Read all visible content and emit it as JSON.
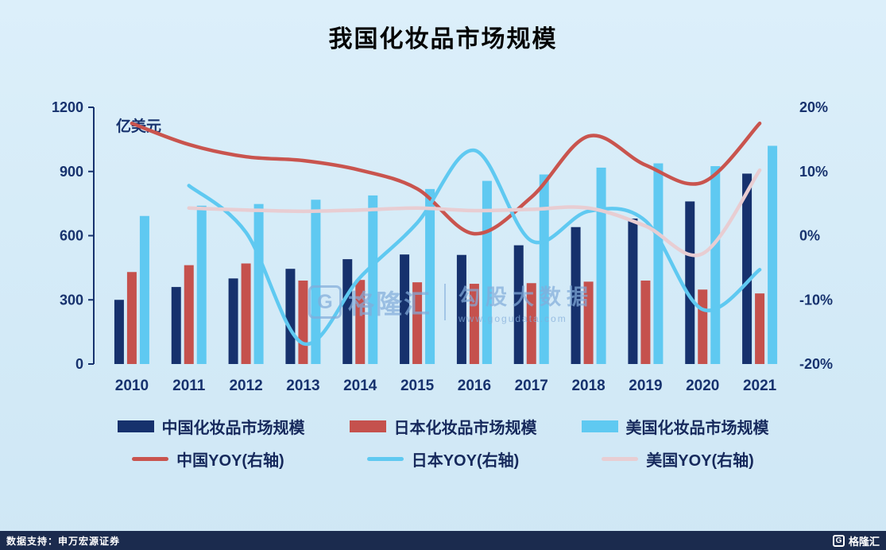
{
  "chart_data": {
    "type": "bar+line",
    "title": "我国化妆品市场规模",
    "grid": false,
    "legend_position": "bottom",
    "categories": [
      "2010",
      "2011",
      "2012",
      "2013",
      "2014",
      "2015",
      "2016",
      "2017",
      "2018",
      "2019",
      "2020",
      "2021"
    ],
    "left_axis": {
      "unit": "亿美元",
      "min": 0,
      "max": 1200,
      "ticks": [
        0,
        300,
        600,
        900,
        1200
      ]
    },
    "right_axis": {
      "min": -20,
      "max": 20,
      "ticks": [
        20,
        10,
        0,
        -10,
        -20
      ],
      "suffix": "%"
    },
    "axis_color": "#17326e",
    "bar_series": [
      {
        "name": "中国化妆品市场规模",
        "color": "#16316d",
        "values": [
          300,
          360,
          400,
          445,
          490,
          512,
          510,
          555,
          640,
          680,
          760,
          890
        ]
      },
      {
        "name": "日本化妆品市场规模",
        "color": "#c5514d",
        "values": [
          430,
          462,
          470,
          390,
          393,
          382,
          375,
          378,
          385,
          390,
          348,
          330
        ]
      },
      {
        "name": "美国化妆品市场规模",
        "color": "#5fc9f1",
        "values": [
          692,
          740,
          748,
          768,
          788,
          818,
          856,
          886,
          918,
          938,
          925,
          1020
        ]
      }
    ],
    "line_series": [
      {
        "name": "中国YOY(右轴)",
        "color": "#c9544e",
        "axis": "right",
        "values": [
          17.5,
          14.2,
          12.3,
          11.7,
          10.2,
          7.3,
          0.3,
          6.0,
          15.5,
          11.0,
          8.3,
          17.5
        ]
      },
      {
        "name": "日本YOY(右轴)",
        "color": "#5fc9f1",
        "axis": "right",
        "values": [
          null,
          7.8,
          0.5,
          -16.8,
          -6.5,
          2.0,
          13.3,
          -0.8,
          3.8,
          2.3,
          -11.5,
          -5.3
        ]
      },
      {
        "name": "美国YOY(右轴)",
        "color": "#e8cdd2",
        "axis": "right",
        "values": [
          null,
          4.3,
          4.0,
          3.8,
          4.0,
          4.3,
          3.9,
          4.1,
          4.3,
          1.5,
          -2.8,
          10.2
        ]
      }
    ]
  },
  "watermark": {
    "brand": "格隆汇",
    "logo_letter": "G",
    "name": "勾股大数据",
    "url": "www.gogudata.com"
  },
  "footer": {
    "left": "数据支持：申万宏源证券",
    "brand": "格隆汇",
    "logo_letter": "G"
  }
}
